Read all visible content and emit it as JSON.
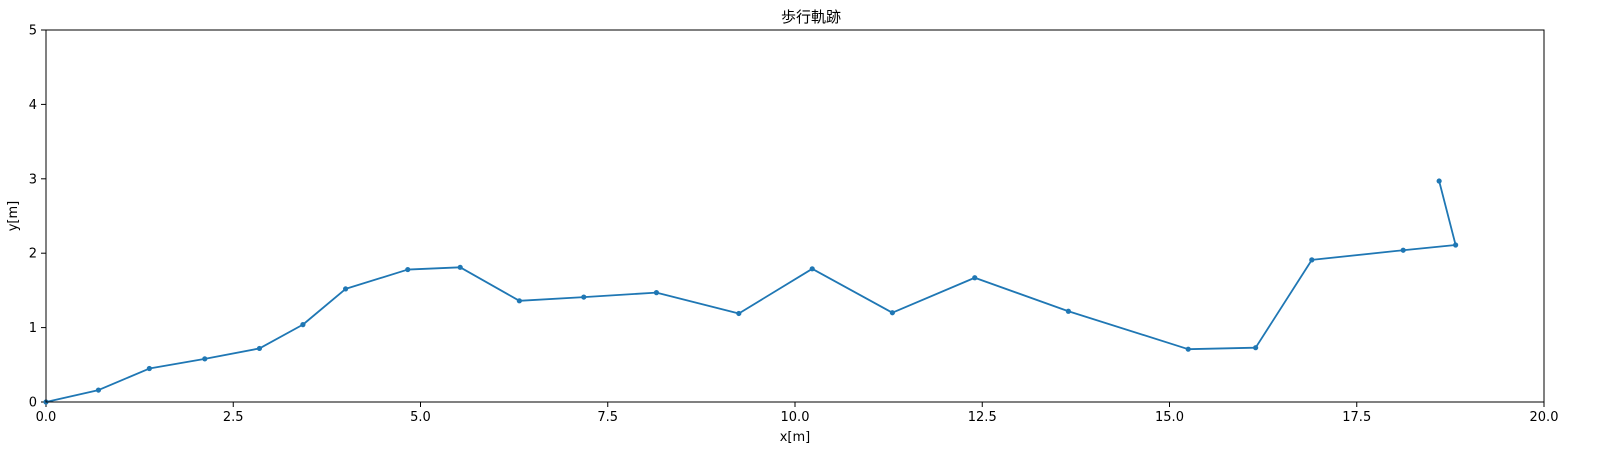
{
  "chart_data": {
    "type": "line",
    "title": "歩行軌跡",
    "xlabel": "x[m]",
    "ylabel": "y[m]",
    "xlim": [
      0,
      20
    ],
    "ylim": [
      0,
      5
    ],
    "xticks": [
      0,
      2.5,
      5,
      7.5,
      10,
      12.5,
      15,
      17.5,
      20
    ],
    "xtick_labels": [
      "0.0",
      "2.5",
      "5.0",
      "7.5",
      "10.0",
      "12.5",
      "15.0",
      "17.5",
      "20.0"
    ],
    "yticks": [
      0,
      1,
      2,
      3,
      4,
      5
    ],
    "ytick_labels": [
      "0",
      "1",
      "2",
      "3",
      "4",
      "5"
    ],
    "grid": false,
    "color": "#1f77b4",
    "series": [
      {
        "x": [
          0.0,
          0.7,
          1.38,
          2.12,
          2.85,
          3.43,
          4.0,
          4.83,
          5.53,
          6.32,
          7.18,
          8.15,
          9.25,
          10.23,
          11.3,
          12.4,
          13.65,
          15.25,
          16.15,
          16.9,
          18.12,
          18.82,
          18.6
        ],
        "y": [
          0.0,
          0.16,
          0.45,
          0.58,
          0.72,
          1.04,
          1.52,
          1.78,
          1.81,
          1.36,
          1.41,
          1.47,
          1.19,
          1.79,
          1.2,
          1.67,
          1.22,
          0.71,
          0.73,
          1.91,
          2.04,
          2.11,
          2.97
        ]
      }
    ]
  }
}
